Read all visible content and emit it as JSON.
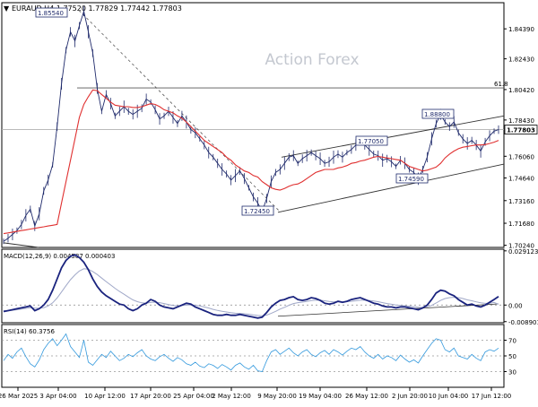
{
  "chart_data": [
    {
      "type": "line",
      "header": {
        "symbol_line": "EURAUD,H4  1.77520  1.77829  1.77442  1.77803",
        "watermark": "Action Forex",
        "current_price_label": "1.77803",
        "fib_label": "61.8"
      },
      "y_ticks": [
        "1.84390",
        "1.82430",
        "1.80420",
        "1.78430",
        "1.76060",
        "1.74640",
        "1.73160",
        "1.71680",
        "1.70240"
      ],
      "ylim": [
        1.701,
        1.861
      ],
      "series": [
        {
          "color": "#1f2a6b",
          "values": [
            1.705,
            1.707,
            1.7095,
            1.712,
            1.716,
            1.722,
            1.726,
            1.715,
            1.723,
            1.738,
            1.745,
            1.755,
            1.78,
            1.808,
            1.83,
            1.842,
            1.836,
            1.846,
            1.8554,
            1.842,
            1.828,
            1.805,
            1.79,
            1.801,
            1.795,
            1.787,
            1.79,
            1.793,
            1.79,
            1.788,
            1.79,
            1.792,
            1.798,
            1.796,
            1.791,
            1.785,
            1.787,
            1.79,
            1.786,
            1.782,
            1.787,
            1.783,
            1.778,
            1.776,
            1.772,
            1.768,
            1.763,
            1.76,
            1.756,
            1.752,
            1.749,
            1.745,
            1.748,
            1.751,
            1.746,
            1.74,
            1.734,
            1.73,
            1.7245,
            1.733,
            1.744,
            1.75,
            1.752,
            1.756,
            1.76,
            1.761,
            1.756,
            1.759,
            1.761,
            1.763,
            1.761,
            1.759,
            1.756,
            1.757,
            1.76,
            1.762,
            1.76,
            1.763,
            1.765,
            1.768,
            1.7705,
            1.768,
            1.765,
            1.762,
            1.761,
            1.758,
            1.759,
            1.757,
            1.754,
            1.758,
            1.756,
            1.752,
            1.75,
            1.7459,
            1.752,
            1.76,
            1.772,
            1.782,
            1.788,
            1.783,
            1.78,
            1.783,
            1.776,
            1.772,
            1.769,
            1.771,
            1.768,
            1.764,
            1.77,
            1.774,
            1.777,
            1.778
          ]
        },
        {
          "color": "#e03030",
          "values": [
            1.71,
            1.7105,
            1.711,
            1.7115,
            1.712,
            1.7125,
            1.713,
            1.7135,
            1.714,
            1.7145,
            1.715,
            1.7155,
            1.716,
            1.73,
            1.744,
            1.758,
            1.772,
            1.786,
            1.7945,
            1.7995,
            1.804,
            1.8035,
            1.801,
            1.7985,
            1.796,
            1.794,
            1.7935,
            1.793,
            1.793,
            1.7925,
            1.7925,
            1.793,
            1.794,
            1.795,
            1.7945,
            1.793,
            1.791,
            1.79,
            1.789,
            1.787,
            1.7855,
            1.783,
            1.78,
            1.777,
            1.774,
            1.771,
            1.769,
            1.767,
            1.765,
            1.763,
            1.76,
            1.758,
            1.755,
            1.753,
            1.751,
            1.75,
            1.748,
            1.747,
            1.744,
            1.742,
            1.74,
            1.739,
            1.7385,
            1.7395,
            1.741,
            1.742,
            1.7425,
            1.744,
            1.746,
            1.748,
            1.75,
            1.751,
            1.752,
            1.752,
            1.752,
            1.753,
            1.7535,
            1.7545,
            1.756,
            1.7565,
            1.7575,
            1.758,
            1.759,
            1.76,
            1.7605,
            1.76,
            1.7595,
            1.759,
            1.7585,
            1.758,
            1.756,
            1.754,
            1.753,
            1.752,
            1.751,
            1.7515,
            1.7525,
            1.7535,
            1.756,
            1.7595,
            1.762,
            1.764,
            1.7655,
            1.7665,
            1.767,
            1.7675,
            1.768,
            1.768,
            1.7682,
            1.769,
            1.7698,
            1.771
          ]
        }
      ],
      "annotations": [
        "1.85540",
        "1.88800",
        "1.77050",
        "1.74590",
        "1.72450"
      ],
      "x_tick_labels": [
        "26 Mar 2025",
        "3 Apr 04:00",
        "10 Apr 12:00",
        "17 Apr 20:00",
        "25 Apr 04:00",
        "2 May 12:00",
        "9 May 20:00",
        "19 May 04:00",
        "26 May 12:00",
        "2 Jun 20:00",
        "10 Jun 04:00",
        "17 Jun 12:00"
      ],
      "grid": false
    },
    {
      "type": "line",
      "title": "MACD(12,26,9) 0.004587 0.000403",
      "y_ticks": [
        "0.029123",
        "0.00",
        "-0.008901"
      ],
      "ylim": [
        -0.0095,
        0.03
      ],
      "series": [
        {
          "color": "#1a237e",
          "values": [
            -0.0035,
            -0.003,
            -0.0025,
            -0.002,
            -0.0015,
            -0.001,
            -0.0005,
            -0.003,
            -0.002,
            0.0,
            0.003,
            0.008,
            0.014,
            0.02,
            0.024,
            0.0262,
            0.027,
            0.0255,
            0.023,
            0.019,
            0.014,
            0.01,
            0.007,
            0.005,
            0.0035,
            0.002,
            0.0005,
            0.0,
            -0.002,
            -0.003,
            -0.002,
            0.0,
            0.001,
            0.003,
            0.002,
            0.0,
            -0.001,
            -0.0015,
            -0.002,
            -0.001,
            0.0,
            0.001,
            0.0005,
            -0.001,
            -0.002,
            -0.003,
            -0.004,
            -0.005,
            -0.0055,
            -0.0055,
            -0.005,
            -0.0055,
            -0.0055,
            -0.005,
            -0.0055,
            -0.006,
            -0.0065,
            -0.007,
            -0.0065,
            -0.004,
            -0.001,
            0.001,
            0.0025,
            0.003,
            0.004,
            0.0045,
            0.003,
            0.0025,
            0.003,
            0.004,
            0.0035,
            0.0025,
            0.001,
            0.0005,
            0.001,
            0.002,
            0.0015,
            0.002,
            0.003,
            0.0035,
            0.004,
            0.003,
            0.002,
            0.001,
            0.0005,
            -0.0005,
            -0.001,
            -0.001,
            -0.0015,
            -0.001,
            -0.001,
            -0.0015,
            -0.002,
            -0.0025,
            -0.0015,
            0.0,
            0.003,
            0.0065,
            0.008,
            0.0075,
            0.006,
            0.005,
            0.003,
            0.0015,
            0.0,
            0.0005,
            -0.0005,
            -0.001,
            0.0,
            0.0015,
            0.003,
            0.0046
          ]
        },
        {
          "color": "#a0a8c8",
          "values": [
            -0.003,
            -0.003,
            -0.0028,
            -0.0025,
            -0.0022,
            -0.0018,
            -0.0014,
            -0.0017,
            -0.0017,
            -0.0014,
            -0.0005,
            0.0012,
            0.0038,
            0.007,
            0.0104,
            0.0136,
            0.0162,
            0.0183,
            0.0195,
            0.0192,
            0.018,
            0.0164,
            0.0145,
            0.0126,
            0.0108,
            0.009,
            0.0073,
            0.0058,
            0.0043,
            0.0028,
            0.0018,
            0.0012,
            0.001,
            0.0015,
            0.0016,
            0.0013,
            0.0008,
            0.0003,
            -0.0002,
            -0.0004,
            -0.0003,
            0.0,
            0.0001,
            -0.0001,
            -0.0005,
            -0.001,
            -0.0016,
            -0.0023,
            -0.0029,
            -0.0034,
            -0.0037,
            -0.0041,
            -0.0044,
            -0.0045,
            -0.0047,
            -0.0049,
            -0.0053,
            -0.0056,
            -0.0058,
            -0.0054,
            -0.0045,
            -0.0034,
            -0.0022,
            -0.0012,
            -0.0001,
            0.0008,
            0.0013,
            0.0016,
            0.0019,
            0.0024,
            0.0026,
            0.0026,
            0.0023,
            0.0019,
            0.0017,
            0.0018,
            0.0017,
            0.0018,
            0.002,
            0.0023,
            0.0026,
            0.0027,
            0.0025,
            0.0022,
            0.0018,
            0.0013,
            0.0008,
            0.0004,
            0.0,
            -0.0002,
            -0.0004,
            -0.0006,
            -0.0009,
            -0.0012,
            -0.0013,
            -0.001,
            -0.0002,
            0.0011,
            0.0025,
            0.0035,
            0.004,
            0.0042,
            0.004,
            0.0035,
            0.0028,
            0.0023,
            0.0017,
            0.0012,
            0.0009,
            0.001,
            0.0014,
            0.0004
          ]
        }
      ]
    },
    {
      "type": "line",
      "title": "RSI(14) 60.3756",
      "y_ticks": [
        "70",
        "50",
        "30"
      ],
      "ylim": [
        10,
        90
      ],
      "series": [
        {
          "color": "#3399dd",
          "values": [
            44,
            52,
            47,
            55,
            60,
            49,
            40,
            36,
            45,
            58,
            66,
            72,
            63,
            70,
            78,
            62,
            55,
            48,
            70,
            42,
            38,
            45,
            52,
            48,
            56,
            50,
            44,
            47,
            52,
            49,
            54,
            58,
            50,
            46,
            44,
            49,
            52,
            47,
            43,
            48,
            45,
            40,
            38,
            42,
            37,
            35,
            40,
            38,
            34,
            39,
            36,
            32,
            38,
            41,
            36,
            33,
            38,
            31,
            30,
            44,
            55,
            58,
            52,
            56,
            60,
            54,
            50,
            55,
            58,
            52,
            49,
            54,
            57,
            52,
            58,
            55,
            51,
            56,
            60,
            58,
            62,
            55,
            50,
            47,
            52,
            46,
            50,
            48,
            44,
            51,
            46,
            42,
            45,
            41,
            50,
            58,
            66,
            72,
            70,
            58,
            55,
            60,
            50,
            48,
            46,
            52,
            47,
            44,
            55,
            58,
            56,
            60
          ]
        }
      ]
    }
  ]
}
